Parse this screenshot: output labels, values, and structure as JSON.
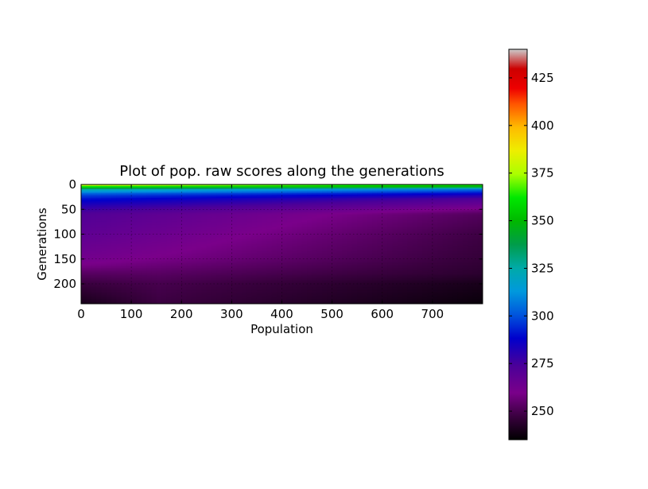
{
  "chart_data": {
    "type": "heatmap",
    "title": "Plot of pop. raw scores along the generations",
    "xlabel": "Population",
    "ylabel": "Generations",
    "xlim": [
      0,
      800
    ],
    "ylim": [
      240,
      0
    ],
    "x_ticks": [
      0,
      100,
      200,
      300,
      400,
      500,
      600,
      700
    ],
    "y_ticks": [
      0,
      50,
      100,
      150,
      200
    ],
    "grid": true,
    "colormap": "nipy_spectral",
    "color_range": [
      235,
      440
    ],
    "colorbar_ticks": [
      250,
      275,
      300,
      325,
      350,
      375,
      400,
      425
    ],
    "colorbar_position": "right",
    "generation_profile": [
      {
        "generation": 0,
        "score_low": 360,
        "score_high": 385
      },
      {
        "generation": 5,
        "score_low": 345,
        "score_high": 360
      },
      {
        "generation": 10,
        "score_low": 305,
        "score_high": 325
      },
      {
        "generation": 20,
        "score_low": 285,
        "score_high": 300
      },
      {
        "generation": 30,
        "score_low": 272,
        "score_high": 290
      },
      {
        "generation": 45,
        "score_low": 262,
        "score_high": 280
      },
      {
        "generation": 60,
        "score_low": 252,
        "score_high": 272
      },
      {
        "generation": 100,
        "score_low": 248,
        "score_high": 268
      },
      {
        "generation": 150,
        "score_low": 246,
        "score_high": 262
      },
      {
        "generation": 180,
        "score_low": 244,
        "score_high": 255
      },
      {
        "generation": 200,
        "score_low": 240,
        "score_high": 252
      },
      {
        "generation": 240,
        "score_low": 237,
        "score_high": 250
      }
    ]
  }
}
